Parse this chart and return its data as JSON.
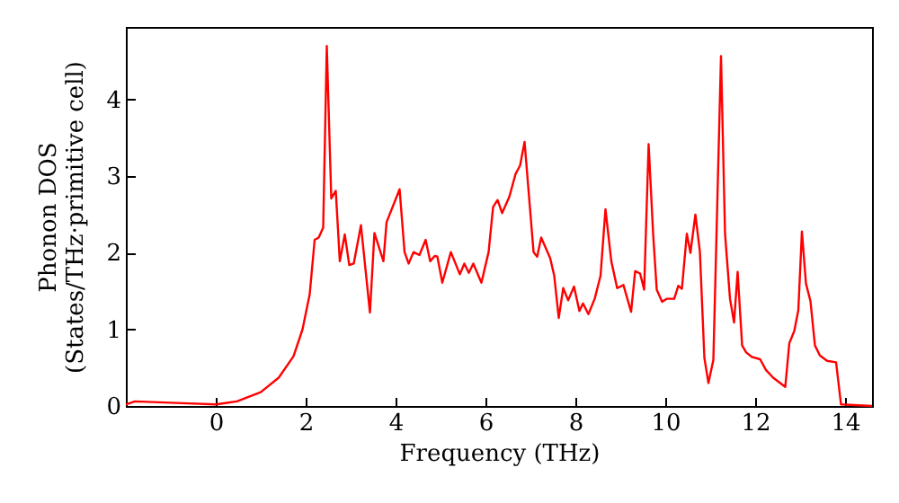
{
  "chart_data": {
    "type": "line",
    "xlabel": "Frequency (THz)",
    "ylabel": "Phonon DOS\n(States/THz·primitive cell)",
    "xlim": [
      -2,
      14.6
    ],
    "ylim": [
      0,
      4.95
    ],
    "xticks": [
      0,
      2,
      4,
      6,
      8,
      10,
      12,
      14
    ],
    "yticks": [
      0,
      1,
      2,
      3,
      4
    ],
    "grid": false,
    "marker": "none",
    "line_style": "solid",
    "series": [
      {
        "color": "#ff0000",
        "x": [
          -2.0,
          -1.8,
          -0.87,
          0.0,
          0.47,
          1.0,
          1.4,
          1.73,
          1.93,
          2.09,
          2.2,
          2.29,
          2.39,
          2.47,
          2.57,
          2.67,
          2.76,
          2.87,
          2.97,
          3.07,
          3.23,
          3.43,
          3.53,
          3.73,
          3.8,
          4.09,
          4.2,
          4.29,
          4.4,
          4.53,
          4.67,
          4.77,
          4.87,
          4.93,
          5.04,
          5.23,
          5.43,
          5.53,
          5.63,
          5.73,
          5.91,
          6.07,
          6.17,
          6.27,
          6.37,
          6.53,
          6.67,
          6.77,
          6.87,
          7.07,
          7.15,
          7.24,
          7.44,
          7.53,
          7.63,
          7.73,
          7.84,
          7.97,
          8.09,
          8.17,
          8.29,
          8.43,
          8.56,
          8.67,
          8.8,
          8.93,
          9.07,
          9.24,
          9.33,
          9.44,
          9.53,
          9.63,
          9.73,
          9.81,
          9.93,
          10.03,
          10.2,
          10.29,
          10.37,
          10.48,
          10.56,
          10.67,
          10.77,
          10.87,
          10.96,
          11.07,
          11.24,
          11.33,
          11.44,
          11.53,
          11.61,
          11.71,
          11.8,
          11.93,
          12.11,
          12.24,
          12.4,
          12.67,
          12.76,
          12.87,
          12.96,
          13.04,
          13.13,
          13.23,
          13.33,
          13.44,
          13.6,
          13.8,
          13.91,
          14.6
        ],
        "values": [
          0.02,
          0.06,
          0.04,
          0.02,
          0.06,
          0.18,
          0.37,
          0.65,
          1.0,
          1.46,
          2.17,
          2.2,
          2.33,
          4.7,
          2.71,
          2.81,
          1.89,
          2.24,
          1.84,
          1.86,
          2.36,
          1.22,
          2.26,
          1.89,
          2.4,
          2.83,
          2.01,
          1.86,
          2.01,
          1.97,
          2.17,
          1.89,
          1.96,
          1.95,
          1.61,
          2.01,
          1.72,
          1.86,
          1.74,
          1.86,
          1.61,
          2.01,
          2.6,
          2.69,
          2.52,
          2.73,
          3.03,
          3.14,
          3.45,
          2.01,
          1.95,
          2.2,
          1.93,
          1.7,
          1.15,
          1.54,
          1.38,
          1.56,
          1.24,
          1.34,
          1.2,
          1.4,
          1.7,
          2.57,
          1.89,
          1.54,
          1.58,
          1.23,
          1.76,
          1.73,
          1.52,
          3.42,
          2.25,
          1.52,
          1.36,
          1.4,
          1.4,
          1.57,
          1.53,
          2.25,
          2.0,
          2.5,
          2.02,
          0.63,
          0.3,
          0.6,
          4.57,
          2.25,
          1.4,
          1.09,
          1.75,
          0.79,
          0.7,
          0.64,
          0.61,
          0.47,
          0.37,
          0.25,
          0.82,
          0.98,
          1.25,
          2.28,
          1.6,
          1.37,
          0.79,
          0.66,
          0.59,
          0.57,
          0.02,
          0.0
        ]
      }
    ]
  }
}
